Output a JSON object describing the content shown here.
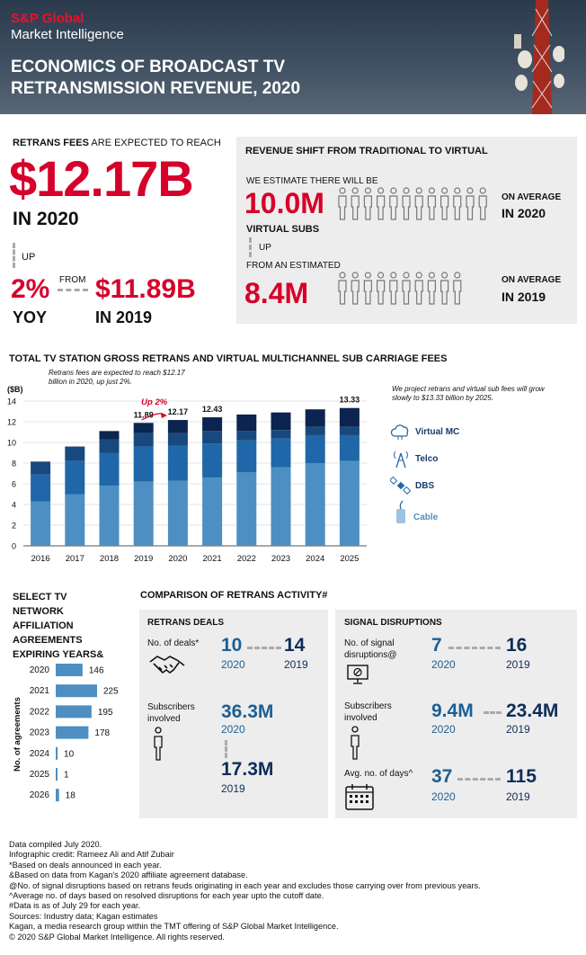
{
  "header": {
    "brand": "S&P Global",
    "brand_sub": "Market Intelligence",
    "title_line1": "ECONOMICS OF BROADCAST TV",
    "title_line2": "RETRANSMISSION REVENUE, 2020"
  },
  "retrans": {
    "intro_bold": "RETRANS FEES",
    "intro_rest": " ARE EXPECTED TO REACH",
    "amount": "$12.17B",
    "year": "IN 2020",
    "up": "UP",
    "pct": "2%",
    "yoy": "YOY",
    "from": "FROM",
    "prev_amount": "$11.89B",
    "prev_year": "IN 2019"
  },
  "shift": {
    "title": "REVENUE SHIFT FROM TRADITIONAL TO VIRTUAL",
    "estimate": "WE ESTIMATE THERE WILL BE",
    "subs_2020": "10.0M",
    "virtual_subs": "VIRTUAL SUBS",
    "up": "UP",
    "from_est": "FROM AN ESTIMATED",
    "subs_2019": "8.4M",
    "avg": "ON AVERAGE",
    "year_2020": "IN 2020",
    "year_2019": "IN 2019"
  },
  "chart": {
    "title": "TOTAL TV STATION GROSS RETRANS AND VIRTUAL MULTICHANNEL SUB CARRIAGE FEES",
    "note_left": "Retrans fees are expected to reach $12.17 billion in 2020, up just 2%.",
    "note_right": "We project retrans and virtual sub fees will grow slowly to $13.33 billion by 2025.",
    "up_label": "Up 2%"
  },
  "chart_data": {
    "type": "bar",
    "stacked": true,
    "ylabel": "($B)",
    "ylim": [
      0,
      14
    ],
    "yticks": [
      0,
      2,
      4,
      6,
      8,
      10,
      12,
      14
    ],
    "categories": [
      "2016",
      "2017",
      "2018",
      "2019",
      "2020",
      "2021",
      "2022",
      "2023",
      "2024",
      "2025"
    ],
    "series": [
      {
        "name": "Cable",
        "color": "#4d8fc2",
        "values": [
          4.3,
          5.0,
          5.8,
          6.2,
          6.3,
          6.6,
          7.1,
          7.6,
          8.0,
          8.2
        ]
      },
      {
        "name": "DBS",
        "color": "#1f67a8",
        "values": [
          2.6,
          3.2,
          3.2,
          3.4,
          3.4,
          3.3,
          3.1,
          2.8,
          2.7,
          2.5
        ]
      },
      {
        "name": "Telco",
        "color": "#17497e",
        "values": [
          1.2,
          1.3,
          1.3,
          1.3,
          1.2,
          1.2,
          0.9,
          0.8,
          0.8,
          0.8
        ]
      },
      {
        "name": "Virtual MC",
        "color": "#0c2450",
        "values": [
          0.05,
          0.1,
          0.8,
          0.99,
          1.27,
          1.33,
          1.6,
          1.7,
          1.7,
          1.83
        ]
      }
    ],
    "totals": {
      "2019": "11.89",
      "2020": "12.17",
      "2021": "12.43",
      "2025": "13.33"
    },
    "legend": [
      "Virtual MC",
      "Telco",
      "DBS",
      "Cable"
    ],
    "legend_position": "right"
  },
  "network": {
    "title": "SELECT TV NETWORK AFFILIATION AGREEMENTS EXPIRING YEARS&",
    "ylabel": "No. of agreements",
    "years": [
      "2020",
      "2021",
      "2022",
      "2023",
      "2024",
      "2025",
      "2026"
    ],
    "counts": [
      146,
      225,
      195,
      178,
      10,
      1,
      18
    ]
  },
  "comparison": {
    "title": "COMPARISON OF RETRANS ACTIVITY#",
    "deals": {
      "heading": "RETRANS DEALS",
      "deals_label": "No. of deals*",
      "deals_2020": "10",
      "deals_2019": "14",
      "subs_label": "Subscribers involved",
      "subs_2020": "36.3M",
      "subs_2019": "17.3M",
      "y2020": "2020",
      "y2019": "2019"
    },
    "disruptions": {
      "heading": "SIGNAL DISRUPTIONS",
      "signal_label": "No. of signal disruptions@",
      "signal_2020": "7",
      "signal_2019": "16",
      "subs_label": "Subscribers involved",
      "subs_2020": "9.4M",
      "subs_2019": "23.4M",
      "days_label": "Avg. no. of days^",
      "days_2020": "37",
      "days_2019": "115",
      "y2020": "2020",
      "y2019": "2019"
    }
  },
  "footer": [
    "Data compiled July 2020.",
    "Infographic credit: Rameez Ali and Atif Zubair",
    "*Based on deals announced in each year.",
    "&Based on data from Kagan's 2020 affiliate agreement database.",
    "@No. of signal disruptions based on retrans feuds originating in each year and excludes those carrying over from previous years.",
    "^Average no. of days based on resolved disruptions for each year upto the cutoff date.",
    "#Data is as of July 29 for each year.",
    "Sources: Industry data; Kagan estimates",
    "Kagan, a media research group within the TMT offering of S&P Global Market Intelligence.",
    "© 2020 S&P Global Market Intelligence. All rights reserved."
  ]
}
